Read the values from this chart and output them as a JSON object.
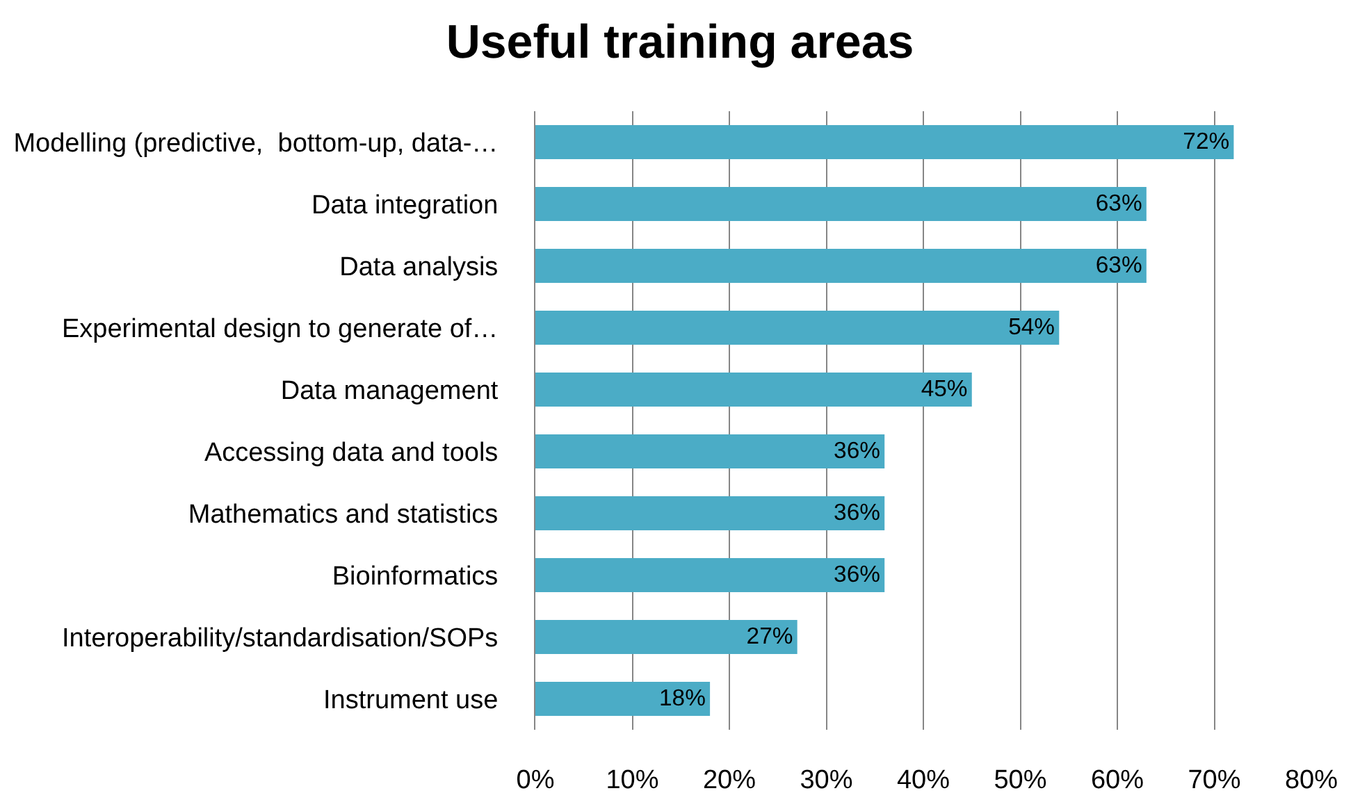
{
  "chart_data": {
    "type": "bar",
    "orientation": "horizontal",
    "title": "Useful training areas",
    "categories": [
      "Modelling (predictive,  bottom-up, data-…",
      "Data integration",
      "Data analysis",
      "Experimental design to generate of…",
      "Data management",
      "Accessing data and tools",
      "Mathematics and statistics",
      "Bioinformatics",
      "Interoperability/standardisation/SOPs",
      "Instrument use"
    ],
    "values": [
      72,
      63,
      63,
      54,
      45,
      36,
      36,
      36,
      27,
      18
    ],
    "value_labels": [
      "72%",
      "63%",
      "63%",
      "54%",
      "45%",
      "36%",
      "36%",
      "36%",
      "27%",
      "18%"
    ],
    "color": "#4bacc6",
    "xlim": [
      0,
      80
    ],
    "xticks": [
      {
        "value": 0,
        "label": "0%"
      },
      {
        "value": 10,
        "label": "10%"
      },
      {
        "value": 20,
        "label": "20%"
      },
      {
        "value": 30,
        "label": "30%"
      },
      {
        "value": 40,
        "label": "40%"
      },
      {
        "value": 50,
        "label": "50%"
      },
      {
        "value": 60,
        "label": "60%"
      },
      {
        "value": 70,
        "label": "70%"
      },
      {
        "value": 80,
        "label": "80%"
      }
    ],
    "grid": "x",
    "legend": false
  }
}
